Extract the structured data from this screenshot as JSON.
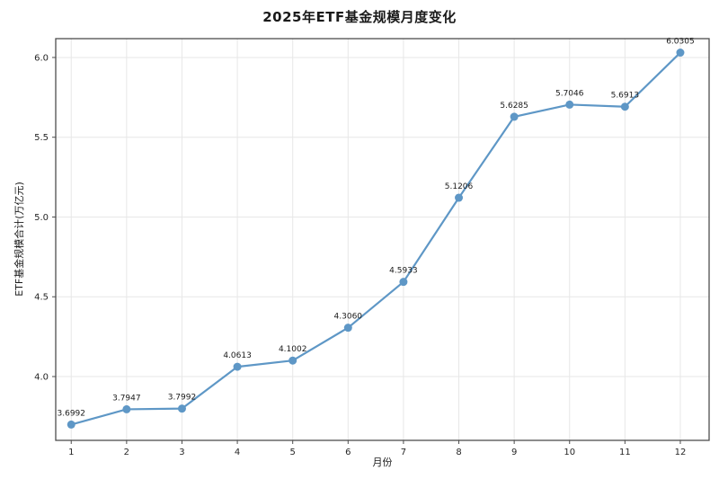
{
  "chart_data": {
    "type": "line",
    "title": "2025年ETF基金规模月度变化",
    "xlabel": "月份",
    "ylabel": "ETF基金规模合计(万亿元)",
    "x": [
      1,
      2,
      3,
      4,
      5,
      6,
      7,
      8,
      9,
      10,
      11,
      12
    ],
    "values": [
      3.6992,
      3.7947,
      3.7992,
      4.0613,
      4.1002,
      4.306,
      4.5933,
      5.1206,
      5.6285,
      5.7046,
      5.6913,
      6.0305
    ],
    "point_labels": [
      "3.6992",
      "3.7947",
      "3.7992",
      "4.0613",
      "4.1002",
      "4.3060",
      "4.5933",
      "5.1206",
      "5.6285",
      "5.7046",
      "5.6913",
      "6.0305"
    ],
    "x_tick_labels": [
      "1",
      "2",
      "3",
      "4",
      "5",
      "6",
      "7",
      "8",
      "9",
      "10",
      "11",
      "12"
    ],
    "y_ticks": [
      4.0,
      4.5,
      5.0,
      5.5,
      6.0
    ],
    "y_tick_labels": [
      "4.0",
      "4.5",
      "5.0",
      "5.5",
      "6.0"
    ],
    "xlim": [
      0.72,
      12.52
    ],
    "ylim": [
      3.6,
      6.118
    ],
    "grid": true,
    "legend": "none",
    "line_color": "#5E97C6",
    "marker_color": "#5E97C6",
    "grid_color": "#e7e7e7",
    "spine_color": "#4d4d4d",
    "tick_text_color": "#262626",
    "label_text_color": "#1a1a1a",
    "background_color": "#ffffff"
  }
}
